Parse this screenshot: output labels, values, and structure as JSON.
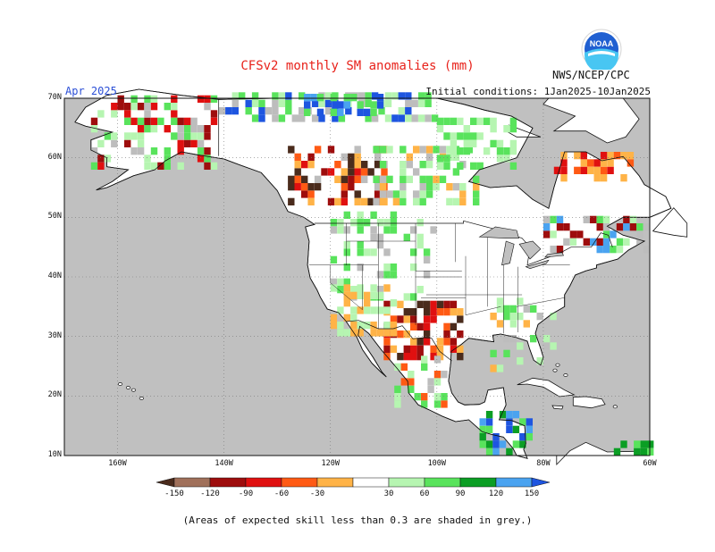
{
  "header": {
    "title": "CFSv2 monthly SM anomalies (mm)",
    "agency": "NWS/NCEP/CPC",
    "month": "Apr 2025",
    "initial_conditions": "Initial conditions: 1Jan2025-10Jan2025",
    "logo_text": "NOAA"
  },
  "map": {
    "lat_range": [
      10,
      70
    ],
    "lon_range": [
      -170,
      -60
    ],
    "lat_ticks": [
      "10N",
      "20N",
      "30N",
      "40N",
      "50N",
      "60N",
      "70N"
    ],
    "lon_ticks": [
      "160W",
      "140W",
      "120W",
      "100W",
      "80W",
      "60W"
    ],
    "land_color": "#ffffff",
    "ocean_color": "#c0c0c0",
    "low_skill_color": "#bdbdbd"
  },
  "colorbar": {
    "labels": [
      "-150",
      "-120",
      "-90",
      "-60",
      "-30",
      "30",
      "60",
      "90",
      "120",
      "150"
    ],
    "colors": [
      "#4a2b1c",
      "#a0705a",
      "#9e0d0d",
      "#e01010",
      "#ff5a14",
      "#ffb347",
      "#ffffff",
      "#b6f5b1",
      "#59e35c",
      "#0b9e24",
      "#4aa3f0",
      "#1e55e0"
    ]
  },
  "footnote": "(Areas of expected skill less than 0.3 are shaded in grey.)"
}
